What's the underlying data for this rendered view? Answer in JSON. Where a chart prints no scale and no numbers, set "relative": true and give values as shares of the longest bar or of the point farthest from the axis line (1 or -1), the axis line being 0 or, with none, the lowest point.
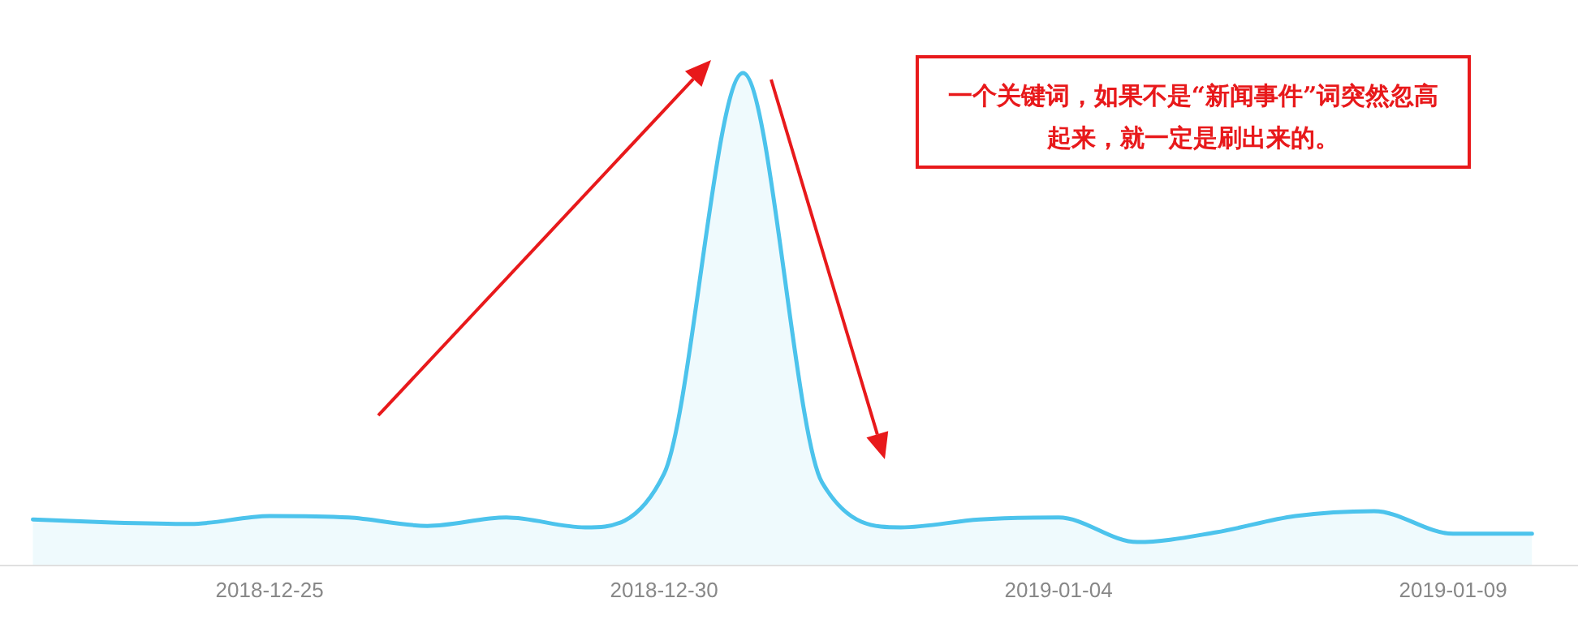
{
  "chart_data": {
    "type": "area",
    "relative": true,
    "x": [
      "2018-12-22",
      "2018-12-23",
      "2018-12-24",
      "2018-12-25",
      "2018-12-26",
      "2018-12-27",
      "2018-12-28",
      "2018-12-29",
      "2018-12-30",
      "2018-12-31",
      "2019-01-01",
      "2019-01-02",
      "2019-01-03",
      "2019-01-04",
      "2019-01-05",
      "2019-01-06",
      "2019-01-07",
      "2019-01-08",
      "2019-01-09",
      "2019-01-10"
    ],
    "series": [
      {
        "color": "#4cc3ec",
        "values": [
          0.092,
          0.086,
          0.083,
          0.099,
          0.096,
          0.079,
          0.096,
          0.076,
          0.185,
          1.0,
          0.168,
          0.076,
          0.092,
          0.096,
          0.046,
          0.066,
          0.099,
          0.109,
          0.063,
          0.063
        ]
      }
    ],
    "xlim": [
      "2018-12-21T14:00",
      "2019-01-10T14:00"
    ],
    "xticks": [
      "2018-12-25",
      "2018-12-30",
      "2019-01-04",
      "2019-01-09"
    ],
    "annotations": [
      "一个关键词，如果不是“新闻事件”词突然忽高起来，就一定是刷出来的。"
    ]
  }
}
